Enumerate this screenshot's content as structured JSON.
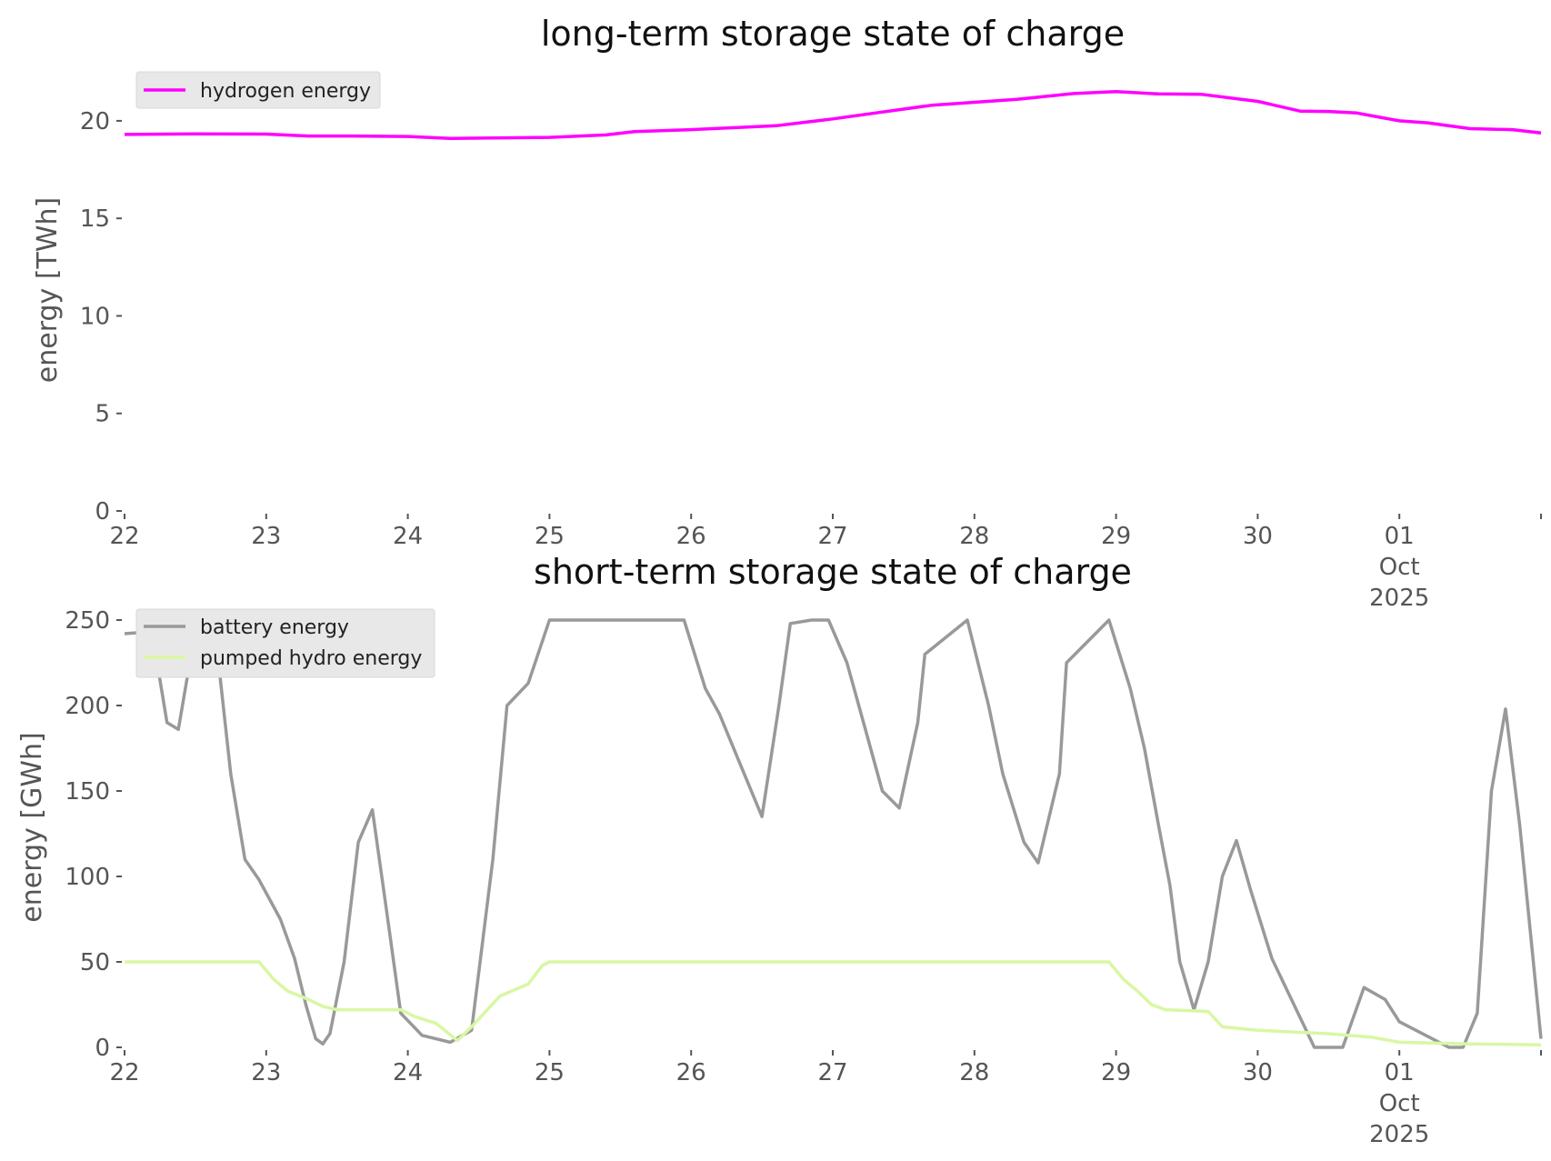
{
  "chart_data": [
    {
      "type": "line",
      "title": "long-term storage state of charge",
      "xlabel": "",
      "ylabel": "energy [TWh]",
      "ylim": [
        0,
        22
      ],
      "yticks": [
        0,
        5,
        10,
        15,
        20
      ],
      "xticks": [
        {
          "day": 22,
          "label": "22"
        },
        {
          "day": 23,
          "label": "23"
        },
        {
          "day": 24,
          "label": "24"
        },
        {
          "day": 25,
          "label": "25"
        },
        {
          "day": 26,
          "label": "26"
        },
        {
          "day": 27,
          "label": "27"
        },
        {
          "day": 28,
          "label": "28"
        },
        {
          "day": 29,
          "label": "29"
        },
        {
          "day": 30,
          "label": "30"
        },
        {
          "day": 31,
          "label": "01\nOct\n2025"
        },
        {
          "day": 32,
          "label": ""
        }
      ],
      "xlim": [
        22,
        32
      ],
      "legend_position": "top-left",
      "grid": false,
      "series": [
        {
          "name": "hydrogen energy",
          "color": "#ff00ff",
          "x": [
            22,
            22.5,
            23,
            23.3,
            23.6,
            24,
            24.3,
            24.6,
            25,
            25.4,
            25.6,
            26,
            26.4,
            26.6,
            27,
            27.3,
            27.7,
            28,
            28.3,
            28.7,
            29,
            29.3,
            29.6,
            30,
            30.3,
            30.5,
            30.7,
            31,
            31.2,
            31.5,
            31.8,
            32
          ],
          "y": [
            19.3,
            19.33,
            19.32,
            19.22,
            19.22,
            19.2,
            19.1,
            19.12,
            19.15,
            19.28,
            19.45,
            19.55,
            19.68,
            19.75,
            20.1,
            20.4,
            20.8,
            20.95,
            21.1,
            21.4,
            21.5,
            21.38,
            21.36,
            21.0,
            20.5,
            20.48,
            20.4,
            20.0,
            19.9,
            19.6,
            19.55,
            19.38
          ]
        }
      ]
    },
    {
      "type": "line",
      "title": "short-term storage state of charge",
      "xlabel": "",
      "ylabel": "energy [GWh]",
      "ylim": [
        0,
        250
      ],
      "yticks": [
        0,
        50,
        100,
        150,
        200,
        250
      ],
      "xticks": [
        {
          "day": 22,
          "label": "22"
        },
        {
          "day": 23,
          "label": "23"
        },
        {
          "day": 24,
          "label": "24"
        },
        {
          "day": 25,
          "label": "25"
        },
        {
          "day": 26,
          "label": "26"
        },
        {
          "day": 27,
          "label": "27"
        },
        {
          "day": 28,
          "label": "28"
        },
        {
          "day": 29,
          "label": "29"
        },
        {
          "day": 30,
          "label": "30"
        },
        {
          "day": 31,
          "label": "01\nOct\n2025"
        },
        {
          "day": 32,
          "label": ""
        }
      ],
      "xlim": [
        22,
        32
      ],
      "legend_position": "top-left",
      "grid": false,
      "series": [
        {
          "name": "battery energy",
          "color": "#999999",
          "x": [
            22,
            22.15,
            22.2,
            22.3,
            22.38,
            22.45,
            22.55,
            22.65,
            22.75,
            22.85,
            22.95,
            23.1,
            23.2,
            23.28,
            23.35,
            23.4,
            23.45,
            23.55,
            23.65,
            23.75,
            23.85,
            23.95,
            24.1,
            24.3,
            24.45,
            24.6,
            24.7,
            24.85,
            25,
            25.5,
            25.95,
            26.1,
            26.2,
            26.35,
            26.5,
            26.62,
            26.7,
            26.85,
            26.97,
            27.1,
            27.25,
            27.35,
            27.47,
            27.6,
            27.65,
            27.95,
            28.1,
            28.2,
            28.35,
            28.45,
            28.6,
            28.65,
            28.95,
            29.1,
            29.2,
            29.3,
            29.38,
            29.45,
            29.55,
            29.65,
            29.75,
            29.85,
            29.95,
            30.1,
            30.4,
            30.5,
            30.6,
            30.75,
            30.9,
            31.0,
            31.35,
            31.45,
            31.55,
            31.65,
            31.75,
            31.85,
            32.0
          ],
          "y": [
            242,
            243,
            240,
            190,
            186,
            220,
            250,
            235,
            160,
            110,
            98,
            75,
            52,
            25,
            5,
            2,
            8,
            50,
            120,
            139,
            80,
            20,
            7,
            3,
            10,
            110,
            200,
            213,
            250,
            250,
            250,
            210,
            195,
            165,
            135,
            200,
            248,
            250,
            250,
            225,
            180,
            150,
            140,
            190,
            230,
            250,
            200,
            160,
            120,
            108,
            160,
            225,
            250,
            210,
            175,
            130,
            95,
            50,
            22,
            50,
            100,
            121,
            92,
            52,
            0,
            0,
            0,
            35,
            28,
            15,
            0,
            0,
            20,
            150,
            198,
            130,
            5
          ]
        },
        {
          "name": "pumped hydro energy",
          "color": "#d9f7a3",
          "x": [
            22,
            22.95,
            23.05,
            23.15,
            23.3,
            23.4,
            23.5,
            23.95,
            24.05,
            24.2,
            24.35,
            24.45,
            24.65,
            24.85,
            24.95,
            25,
            28.95,
            29.05,
            29.15,
            29.25,
            29.35,
            29.65,
            29.75,
            30.0,
            30.5,
            30.8,
            31.0,
            31.5,
            32.0
          ],
          "y": [
            50,
            50,
            40,
            33,
            28,
            24,
            22,
            22,
            18,
            14,
            4,
            12,
            30,
            37,
            48,
            50,
            50,
            40,
            33,
            25,
            22,
            21,
            12,
            10,
            8,
            6,
            3,
            2,
            1.5
          ]
        }
      ]
    }
  ]
}
